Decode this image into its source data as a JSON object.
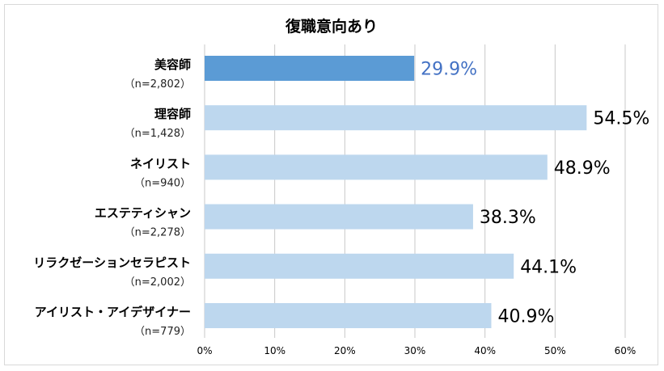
{
  "colors": {
    "highlight_bar": "#5b9bd5",
    "bar": "#bdd7ee",
    "grid": "#c8c8c8",
    "highlight_text": "#4472c4"
  },
  "chart_data": {
    "type": "bar",
    "orientation": "horizontal",
    "title": "復職意向あり",
    "categories": [
      {
        "label": "美容師",
        "n": "（n=2,802）"
      },
      {
        "label": "理容師",
        "n": "（n=1,428）"
      },
      {
        "label": "ネイリスト",
        "n": "（n=940）"
      },
      {
        "label": "エステティシャン",
        "n": "（n=2,278）"
      },
      {
        "label": "リラクゼーションセラピスト",
        "n": "（n=2,002）"
      },
      {
        "label": "アイリスト・アイデザイナー",
        "n": "（n=779）"
      }
    ],
    "values": [
      29.9,
      54.5,
      48.9,
      38.3,
      44.1,
      40.9
    ],
    "value_labels": [
      "29.9%",
      "54.5%",
      "48.9%",
      "38.3%",
      "44.1%",
      "40.9%"
    ],
    "highlight_index": 0,
    "xlim": [
      0,
      60
    ],
    "xticks": [
      "0%",
      "10%",
      "20%",
      "30%",
      "40%",
      "50%",
      "60%"
    ],
    "xlabel": "",
    "ylabel": "",
    "grid": true
  }
}
